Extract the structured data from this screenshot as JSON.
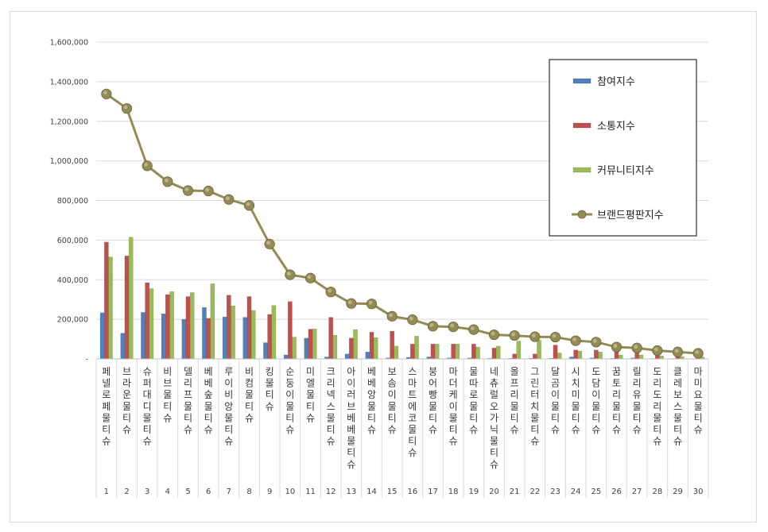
{
  "chart_data": {
    "type": "bar",
    "title": "",
    "xlabel": "",
    "ylabel": "",
    "ylim": [
      0,
      1600000
    ],
    "y_ticks": [
      "-",
      "200,000",
      "400,000",
      "600,000",
      "800,000",
      "1,000,000",
      "1,200,000",
      "1,400,000",
      "1,600,000"
    ],
    "grid": true,
    "legend_position": "top-right",
    "categories": [
      "페넬로페 물티슈",
      "브라운 물티슈",
      "슈퍼대디 물티슈",
      "비브 물티슈",
      "델리프 물티슈",
      "베베숲 물티슈",
      "루이비앙 물티슈",
      "비컴 물티슈",
      "킹 물티슈",
      "순둥이 물티슈",
      "미엘 물티슈",
      "크리넥스 물티슈",
      "아이러브베베 물티슈",
      "베베앙 물티슈",
      "보솜이 물티슈",
      "스마트에코 물티슈",
      "붕어빵 물티슈",
      "마더케이 물티슈",
      "물따로 물티슈",
      "네츄럴오가닉 물티슈",
      "올프리 물티슈",
      "그린터치 물티슈",
      "달곰이 물티슈",
      "시치미 물티슈",
      "도담이 물티슈",
      "꿈토리 물티슈",
      "릴리유 물티슈",
      "도리도리 물티슈",
      "클레보스 물티슈",
      "마미요 물티슈"
    ],
    "ranks": [
      "1",
      "2",
      "3",
      "4",
      "5",
      "6",
      "7",
      "8",
      "9",
      "10",
      "11",
      "12",
      "13",
      "14",
      "15",
      "16",
      "17",
      "18",
      "19",
      "20",
      "21",
      "22",
      "23",
      "24",
      "25",
      "26",
      "27",
      "28",
      "29",
      "30"
    ],
    "series": [
      {
        "name": "참여지수",
        "color": "#4f81bd",
        "kind": "bar",
        "values": [
          233000,
          130000,
          235000,
          228000,
          200000,
          260000,
          212000,
          210000,
          82000,
          20000,
          105000,
          10000,
          25000,
          35000,
          5000,
          8000,
          10000,
          5000,
          5000,
          3000,
          3000,
          3000,
          3000,
          10000,
          5000,
          3000,
          5000,
          2000,
          2000,
          2000
        ]
      },
      {
        "name": "소통지수",
        "color": "#c0504d",
        "kind": "bar",
        "values": [
          590000,
          520000,
          385000,
          325000,
          315000,
          205000,
          322000,
          315000,
          225000,
          290000,
          150000,
          210000,
          105000,
          135000,
          140000,
          75000,
          75000,
          75000,
          75000,
          55000,
          25000,
          25000,
          70000,
          45000,
          45000,
          35000,
          30000,
          25000,
          20000,
          15000
        ]
      },
      {
        "name": "커뮤니티지수",
        "color": "#9bbb59",
        "kind": "bar",
        "values": [
          515000,
          615000,
          355000,
          340000,
          335000,
          380000,
          268000,
          245000,
          270000,
          110000,
          152000,
          120000,
          148000,
          108000,
          65000,
          115000,
          75000,
          75000,
          60000,
          65000,
          90000,
          95000,
          30000,
          40000,
          35000,
          20000,
          20000,
          15000,
          12000,
          10000
        ]
      },
      {
        "name": "브랜드평판지수",
        "color": "#948a54",
        "kind": "line",
        "values": [
          1338000,
          1265000,
          975000,
          895000,
          850000,
          848000,
          805000,
          775000,
          580000,
          425000,
          408000,
          338000,
          280000,
          278000,
          215000,
          198000,
          165000,
          162000,
          148000,
          122000,
          118000,
          112000,
          110000,
          92000,
          85000,
          60000,
          55000,
          42000,
          35000,
          28000
        ]
      }
    ]
  }
}
